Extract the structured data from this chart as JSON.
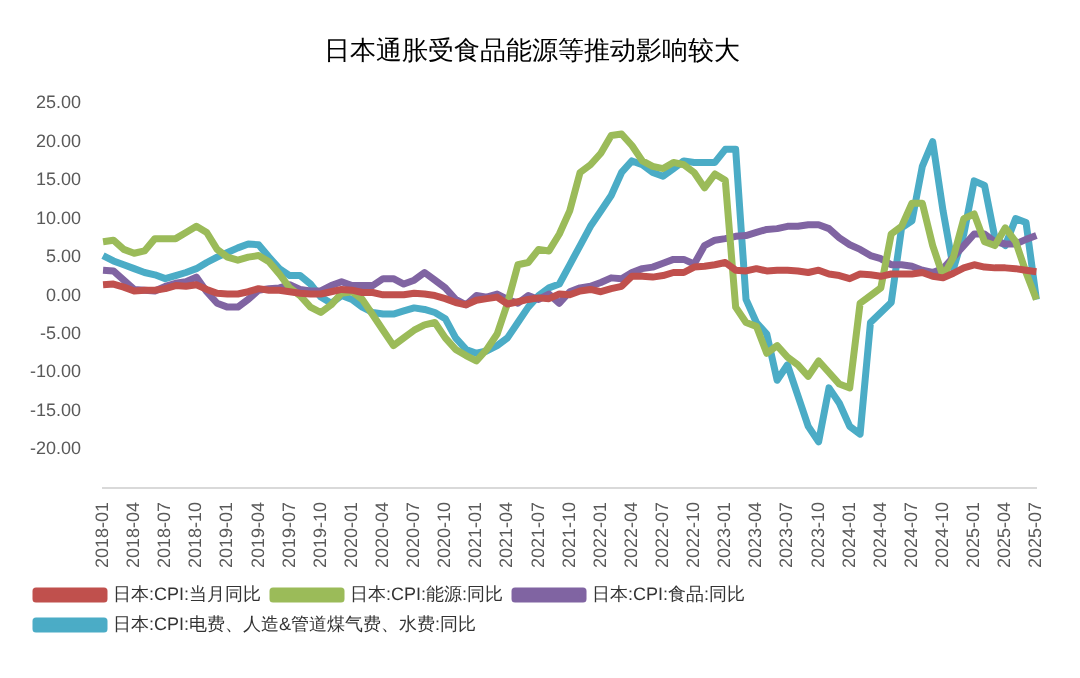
{
  "chart_data": {
    "type": "line",
    "title": "日本通胀受食品能源等推动影响较大",
    "categories": [
      "2018-01",
      null,
      null,
      "2018-04",
      null,
      null,
      "2018-07",
      null,
      null,
      "2018-10",
      null,
      null,
      "2019-01",
      null,
      null,
      "2019-04",
      null,
      null,
      "2019-07",
      null,
      null,
      "2019-10",
      null,
      null,
      "2020-01",
      null,
      null,
      "2020-04",
      null,
      null,
      "2020-07",
      null,
      null,
      "2020-10",
      null,
      null,
      "2021-01",
      null,
      null,
      "2021-04",
      null,
      null,
      "2021-07",
      null,
      null,
      "2021-10",
      null,
      null,
      "2022-01",
      null,
      null,
      "2022-04",
      null,
      null,
      "2022-07",
      null,
      null,
      "2022-10",
      null,
      null,
      "2023-01",
      null,
      null,
      "2023-04",
      null,
      null,
      "2023-07",
      null,
      null,
      "2023-10",
      null,
      null,
      "2024-01",
      null,
      null,
      "2024-04",
      null,
      null,
      "2024-07",
      null,
      null,
      "2024-10",
      null,
      null,
      "2025-01",
      null,
      null,
      "2025-04",
      null,
      null,
      "2025-07"
    ],
    "series": [
      {
        "name": "日本:CPI:当月同比",
        "color": "#c0504d",
        "values": [
          1.4,
          1.5,
          1.1,
          0.6,
          0.7,
          0.7,
          0.9,
          1.3,
          1.2,
          1.4,
          0.8,
          0.3,
          0.2,
          0.2,
          0.5,
          0.9,
          0.7,
          0.7,
          0.5,
          0.3,
          0.2,
          0.2,
          0.5,
          0.8,
          0.7,
          0.4,
          0.4,
          0.1,
          0.1,
          0.1,
          0.3,
          0.2,
          0.0,
          -0.4,
          -0.9,
          -1.2,
          -0.6,
          -0.4,
          -0.2,
          -1.1,
          -0.8,
          -0.5,
          -0.3,
          -0.4,
          0.2,
          0.1,
          0.6,
          0.8,
          0.5,
          0.9,
          1.2,
          2.5,
          2.5,
          2.4,
          2.6,
          3.0,
          3.0,
          3.7,
          3.8,
          4.0,
          4.3,
          3.3,
          3.2,
          3.5,
          3.2,
          3.3,
          3.3,
          3.2,
          3.0,
          3.3,
          2.8,
          2.6,
          2.2,
          2.8,
          2.7,
          2.5,
          2.8,
          2.8,
          2.8,
          3.0,
          2.5,
          2.3,
          2.9,
          3.6,
          4.0,
          3.7,
          3.6,
          3.6,
          3.5,
          3.3,
          3.1
        ]
      },
      {
        "name": "日本:CPI:能源:同比",
        "color": "#9bbb59",
        "values": [
          7.0,
          7.2,
          6.0,
          5.5,
          5.8,
          7.4,
          7.4,
          7.4,
          8.2,
          9.0,
          8.2,
          6.0,
          5.0,
          4.6,
          5.0,
          5.2,
          4.4,
          2.8,
          1.0,
          0.0,
          -1.5,
          -2.2,
          -1.2,
          0.3,
          0.5,
          -0.5,
          -2.5,
          -4.5,
          -6.5,
          -5.5,
          -4.5,
          -3.8,
          -3.5,
          -5.5,
          -7.0,
          -7.8,
          -8.5,
          -7.0,
          -5.0,
          -1.0,
          4.0,
          4.3,
          6.0,
          5.8,
          8.0,
          11.0,
          16.0,
          17.0,
          18.5,
          20.8,
          21.0,
          19.5,
          17.5,
          16.8,
          16.5,
          17.3,
          17.0,
          16.0,
          14.0,
          15.8,
          15.0,
          -1.5,
          -3.5,
          -4.0,
          -7.5,
          -6.5,
          -8.0,
          -9.0,
          -10.5,
          -8.5,
          -10.0,
          -11.5,
          -12.0,
          -1.0,
          0.0,
          1.0,
          8.0,
          9.0,
          12.0,
          12.0,
          6.5,
          2.5,
          5.0,
          10.0,
          10.6,
          7.0,
          6.5,
          8.8,
          7.0,
          3.0,
          -0.5
        ]
      },
      {
        "name": "日本:CPI:食品:同比",
        "color": "#8064a2",
        "values": [
          3.3,
          3.2,
          2.0,
          0.8,
          0.7,
          0.6,
          1.2,
          1.6,
          1.8,
          2.4,
          0.5,
          -1.0,
          -1.5,
          -1.5,
          -0.5,
          0.7,
          0.9,
          1.0,
          1.4,
          0.8,
          0.6,
          0.6,
          1.3,
          1.8,
          1.3,
          1.3,
          1.3,
          2.2,
          2.2,
          1.5,
          2.0,
          3.0,
          2.0,
          1.0,
          -0.5,
          -1.2,
          0.0,
          -0.2,
          0.2,
          -0.5,
          -1.0,
          0.0,
          -0.5,
          0.2,
          -1.0,
          0.5,
          1.0,
          1.2,
          1.7,
          2.3,
          2.2,
          3.0,
          3.5,
          3.7,
          4.2,
          4.7,
          4.7,
          4.1,
          6.5,
          7.2,
          7.4,
          7.7,
          7.8,
          8.2,
          8.6,
          8.7,
          9.0,
          9.0,
          9.2,
          9.2,
          8.7,
          7.5,
          6.6,
          6.0,
          5.2,
          4.8,
          4.0,
          4.0,
          3.8,
          3.3,
          3.0,
          3.5,
          5.0,
          6.5,
          8.0,
          8.0,
          7.0,
          6.7,
          6.7,
          7.3,
          7.8
        ]
      },
      {
        "name": "日本:CPI:电费、人造&管道煤气费、水费:同比",
        "color": "#4bacc6",
        "values": [
          5.2,
          4.5,
          4.0,
          3.5,
          3.0,
          2.7,
          2.2,
          2.6,
          3.0,
          3.5,
          4.3,
          5.0,
          5.6,
          6.2,
          6.7,
          6.6,
          5.0,
          3.5,
          2.6,
          2.6,
          1.5,
          -0.2,
          -1.0,
          0.0,
          -0.5,
          -1.5,
          -2.2,
          -2.4,
          -2.4,
          -2.0,
          -1.6,
          -1.8,
          -2.2,
          -3.0,
          -5.5,
          -7.0,
          -7.5,
          -7.2,
          -6.5,
          -5.5,
          -3.5,
          -1.5,
          0.0,
          1.0,
          1.5,
          4.0,
          6.5,
          9.0,
          11.0,
          13.0,
          16.0,
          17.5,
          17.0,
          16.0,
          15.5,
          16.5,
          17.5,
          17.3,
          17.3,
          17.3,
          19.0,
          19.0,
          -0.5,
          -3.5,
          -5.0,
          -11.0,
          -9.0,
          -13.0,
          -17.0,
          -19.0,
          -12.0,
          -14.0,
          -17.0,
          -18.0,
          -3.5,
          -2.2,
          -0.9,
          8.8,
          9.7,
          16.8,
          20.0,
          11.0,
          3.5,
          8.0,
          14.9,
          14.3,
          7.5,
          6.5,
          10.0,
          9.5,
          -0.5
        ]
      }
    ],
    "ylim": [
      -25,
      25
    ],
    "yticks": [
      {
        "value": -20,
        "label": "-20.00"
      },
      {
        "value": -15,
        "label": "-15.00"
      },
      {
        "value": -10,
        "label": "-10.00"
      },
      {
        "value": -5,
        "label": "-5.00"
      },
      {
        "value": 0,
        "label": "0.00"
      },
      {
        "value": 5,
        "label": "5.00"
      },
      {
        "value": 10,
        "label": "10.00"
      },
      {
        "value": 15,
        "label": "15.00"
      },
      {
        "value": 20,
        "label": "20.00"
      },
      {
        "value": 25,
        "label": "25.00"
      }
    ],
    "grid": false,
    "legend": "bottom",
    "marker": "none",
    "line_style": "solid"
  }
}
